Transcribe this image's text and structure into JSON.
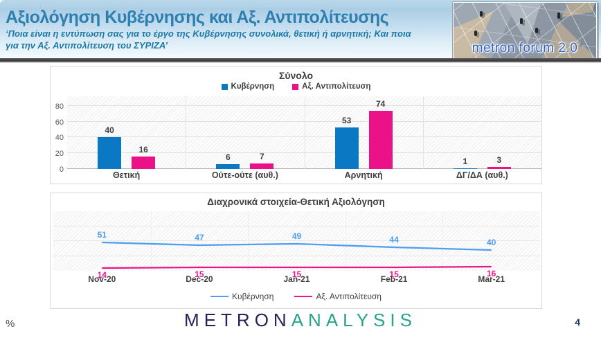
{
  "header": {
    "title": "Αξιολόγηση Κυβέρνησης και Αξ. Αντιπολίτευσης",
    "subtitle": "‘Ποια είναι η εντύπωση σας για το έργο της Κυβέρνησης συνολικά, θετική ή αρνητική; Και ποια για την Αξ. Αντιπολίτευση του ΣΥΡΙΖΑ’",
    "logo_text": "metron forum 2.0"
  },
  "chart_data": [
    {
      "type": "bar",
      "title": "Σύνολο",
      "categories": [
        "Θετική",
        "Ούτε-ούτε (αυθ.)",
        "Αρνητική",
        "ΔΓ/ΔΑ (αυθ.)"
      ],
      "series": [
        {
          "name": "Κυβέρνηση",
          "color": "#0b78c3",
          "values": [
            40,
            6,
            53,
            1
          ]
        },
        {
          "name": "Αξ. Αντιπολίτευση",
          "color": "#eb1287",
          "values": [
            16,
            7,
            74,
            3
          ]
        }
      ],
      "yticks": [
        0,
        20,
        40,
        60,
        80
      ],
      "ylim": [
        0,
        92
      ],
      "grid": true,
      "legend_position": "top"
    },
    {
      "type": "line",
      "title": "Διαχρονικά στοιχεία-Θετική Αξιολόγηση",
      "categories": [
        "Nov-20",
        "Dec-20",
        "Jan-21",
        "Feb-21",
        "Mar-21"
      ],
      "series": [
        {
          "name": "Κυβέρνηση",
          "color": "#4d9ef0",
          "values": [
            51,
            47,
            49,
            44,
            40
          ],
          "label_position": "above"
        },
        {
          "name": "Αξ. Αντιπολίτευση",
          "color": "#ea1687",
          "values": [
            14,
            15,
            15,
            15,
            16
          ],
          "label_position": "below"
        }
      ],
      "ylim": [
        0,
        96
      ],
      "grid": true,
      "legend_position": "bottom"
    }
  ],
  "footer": {
    "percent_label": "%",
    "logo_metron": "METRON",
    "logo_analysis": "ANALYSIS",
    "page_number": "4"
  }
}
